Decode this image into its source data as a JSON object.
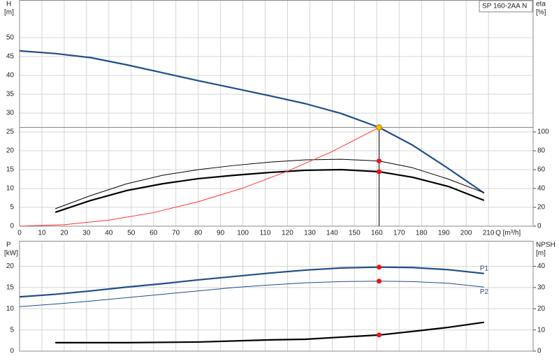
{
  "chart_data": [
    {
      "type": "line",
      "ylabel": "H",
      "yunit": "[m]",
      "y2label": "eta",
      "y2unit": "[%]",
      "xlabel": "Q [m³/h]",
      "annotation": "SP 160-2AA N",
      "xlim": [
        0,
        230
      ],
      "xticks": [
        0,
        10,
        20,
        30,
        40,
        50,
        60,
        70,
        80,
        90,
        100,
        110,
        120,
        130,
        140,
        150,
        160,
        170,
        180,
        190,
        200,
        210
      ],
      "ylim": [
        0,
        60
      ],
      "yticks": [
        0,
        5,
        10,
        15,
        20,
        25,
        30,
        35,
        40,
        45,
        50
      ],
      "y2lim": [
        0,
        240
      ],
      "y2ticks": [
        0,
        20,
        40,
        60,
        80,
        100
      ],
      "grid": true,
      "show_xtick_labels": true,
      "series": [
        {
          "color": "#1f4e8c",
          "weight": "bold",
          "x": [
            0,
            16,
            32,
            48,
            64,
            80,
            96,
            112,
            128,
            144,
            161,
            176,
            192,
            208
          ],
          "values": [
            46.5,
            45.8,
            44.7,
            42.8,
            40.7,
            38.6,
            36.6,
            34.6,
            32.5,
            29.9,
            26.2,
            21.5,
            15.3,
            8.8
          ]
        },
        {
          "color": "#000000",
          "weight": "thin",
          "axis": "y2",
          "x": [
            16,
            32,
            48,
            64,
            80,
            96,
            112,
            128,
            144,
            161,
            176,
            192,
            208
          ],
          "values": [
            18.5,
            32.6,
            45,
            54,
            60,
            64.4,
            68,
            70.4,
            71,
            69.2,
            62,
            50,
            35.5
          ]
        },
        {
          "color": "#000000",
          "weight": "bold",
          "axis": "y2",
          "x": [
            16,
            32,
            48,
            64,
            80,
            96,
            112,
            128,
            144,
            161,
            176,
            192,
            208
          ],
          "values": [
            14.8,
            27.4,
            37.8,
            45,
            50.4,
            54,
            57,
            59.3,
            60,
            57.8,
            51.9,
            42.2,
            27.4
          ]
        },
        {
          "color": "#ff3030",
          "weight": "thin",
          "x": [
            0,
            20,
            40,
            60,
            80,
            100,
            120,
            140,
            161
          ],
          "values": [
            0,
            0.4,
            1.6,
            3.6,
            6.5,
            10.1,
            14.6,
            19.8,
            26.2
          ]
        }
      ],
      "duty_point": {
        "x": 161,
        "y": 26.2,
        "color": "#f5c000"
      },
      "markers": [
        {
          "x": 161,
          "y": 69.2,
          "axis": "y2",
          "color": "#e8141c"
        },
        {
          "x": 161,
          "y": 57.8,
          "axis": "y2",
          "color": "#e8141c"
        }
      ]
    },
    {
      "type": "line",
      "ylabel": "P",
      "yunit": "[kW]",
      "y2label": "NPSH",
      "y2unit": "[m]",
      "xlim": [
        0,
        230
      ],
      "xticks": [
        0,
        10,
        20,
        30,
        40,
        50,
        60,
        70,
        80,
        90,
        100,
        110,
        120,
        130,
        140,
        150,
        160,
        170,
        180,
        190,
        200,
        210
      ],
      "ylim": [
        0,
        26
      ],
      "yticks": [
        0,
        5,
        10,
        15,
        20
      ],
      "y2lim": [
        0,
        52
      ],
      "y2ticks": [
        0,
        10,
        20,
        30,
        40
      ],
      "grid": true,
      "show_xtick_labels": false,
      "series": [
        {
          "name": "P1",
          "color": "#1f4e8c",
          "weight": "bold",
          "x": [
            0,
            16,
            32,
            48,
            64,
            80,
            96,
            112,
            128,
            144,
            161,
            176,
            192,
            208
          ],
          "values": [
            12.8,
            13.4,
            14.2,
            15.1,
            15.9,
            16.8,
            17.6,
            18.4,
            19.1,
            19.6,
            19.8,
            19.7,
            19.2,
            18.3
          ]
        },
        {
          "name": "P2",
          "color": "#1f4e8c",
          "weight": "thin",
          "x": [
            0,
            16,
            32,
            48,
            64,
            80,
            96,
            112,
            128,
            144,
            161,
            176,
            192,
            208
          ],
          "values": [
            10.5,
            11.1,
            11.8,
            12.6,
            13.4,
            14.2,
            15.0,
            15.6,
            16.1,
            16.4,
            16.5,
            16.4,
            16.0,
            15.1
          ]
        },
        {
          "color": "#000000",
          "weight": "bold",
          "axis": "y2",
          "x": [
            16,
            48,
            80,
            112,
            128,
            144,
            161,
            176,
            192,
            208
          ],
          "values": [
            4,
            4,
            4.3,
            5.3,
            5.6,
            6.6,
            7.6,
            9.3,
            11.2,
            13.6
          ]
        }
      ],
      "markers": [
        {
          "x": 161,
          "y": 19.8,
          "color": "#e8141c"
        },
        {
          "x": 161,
          "y": 16.5,
          "color": "#e8141c"
        },
        {
          "x": 161,
          "y": 7.6,
          "axis": "y2",
          "color": "#e8141c"
        }
      ]
    }
  ]
}
